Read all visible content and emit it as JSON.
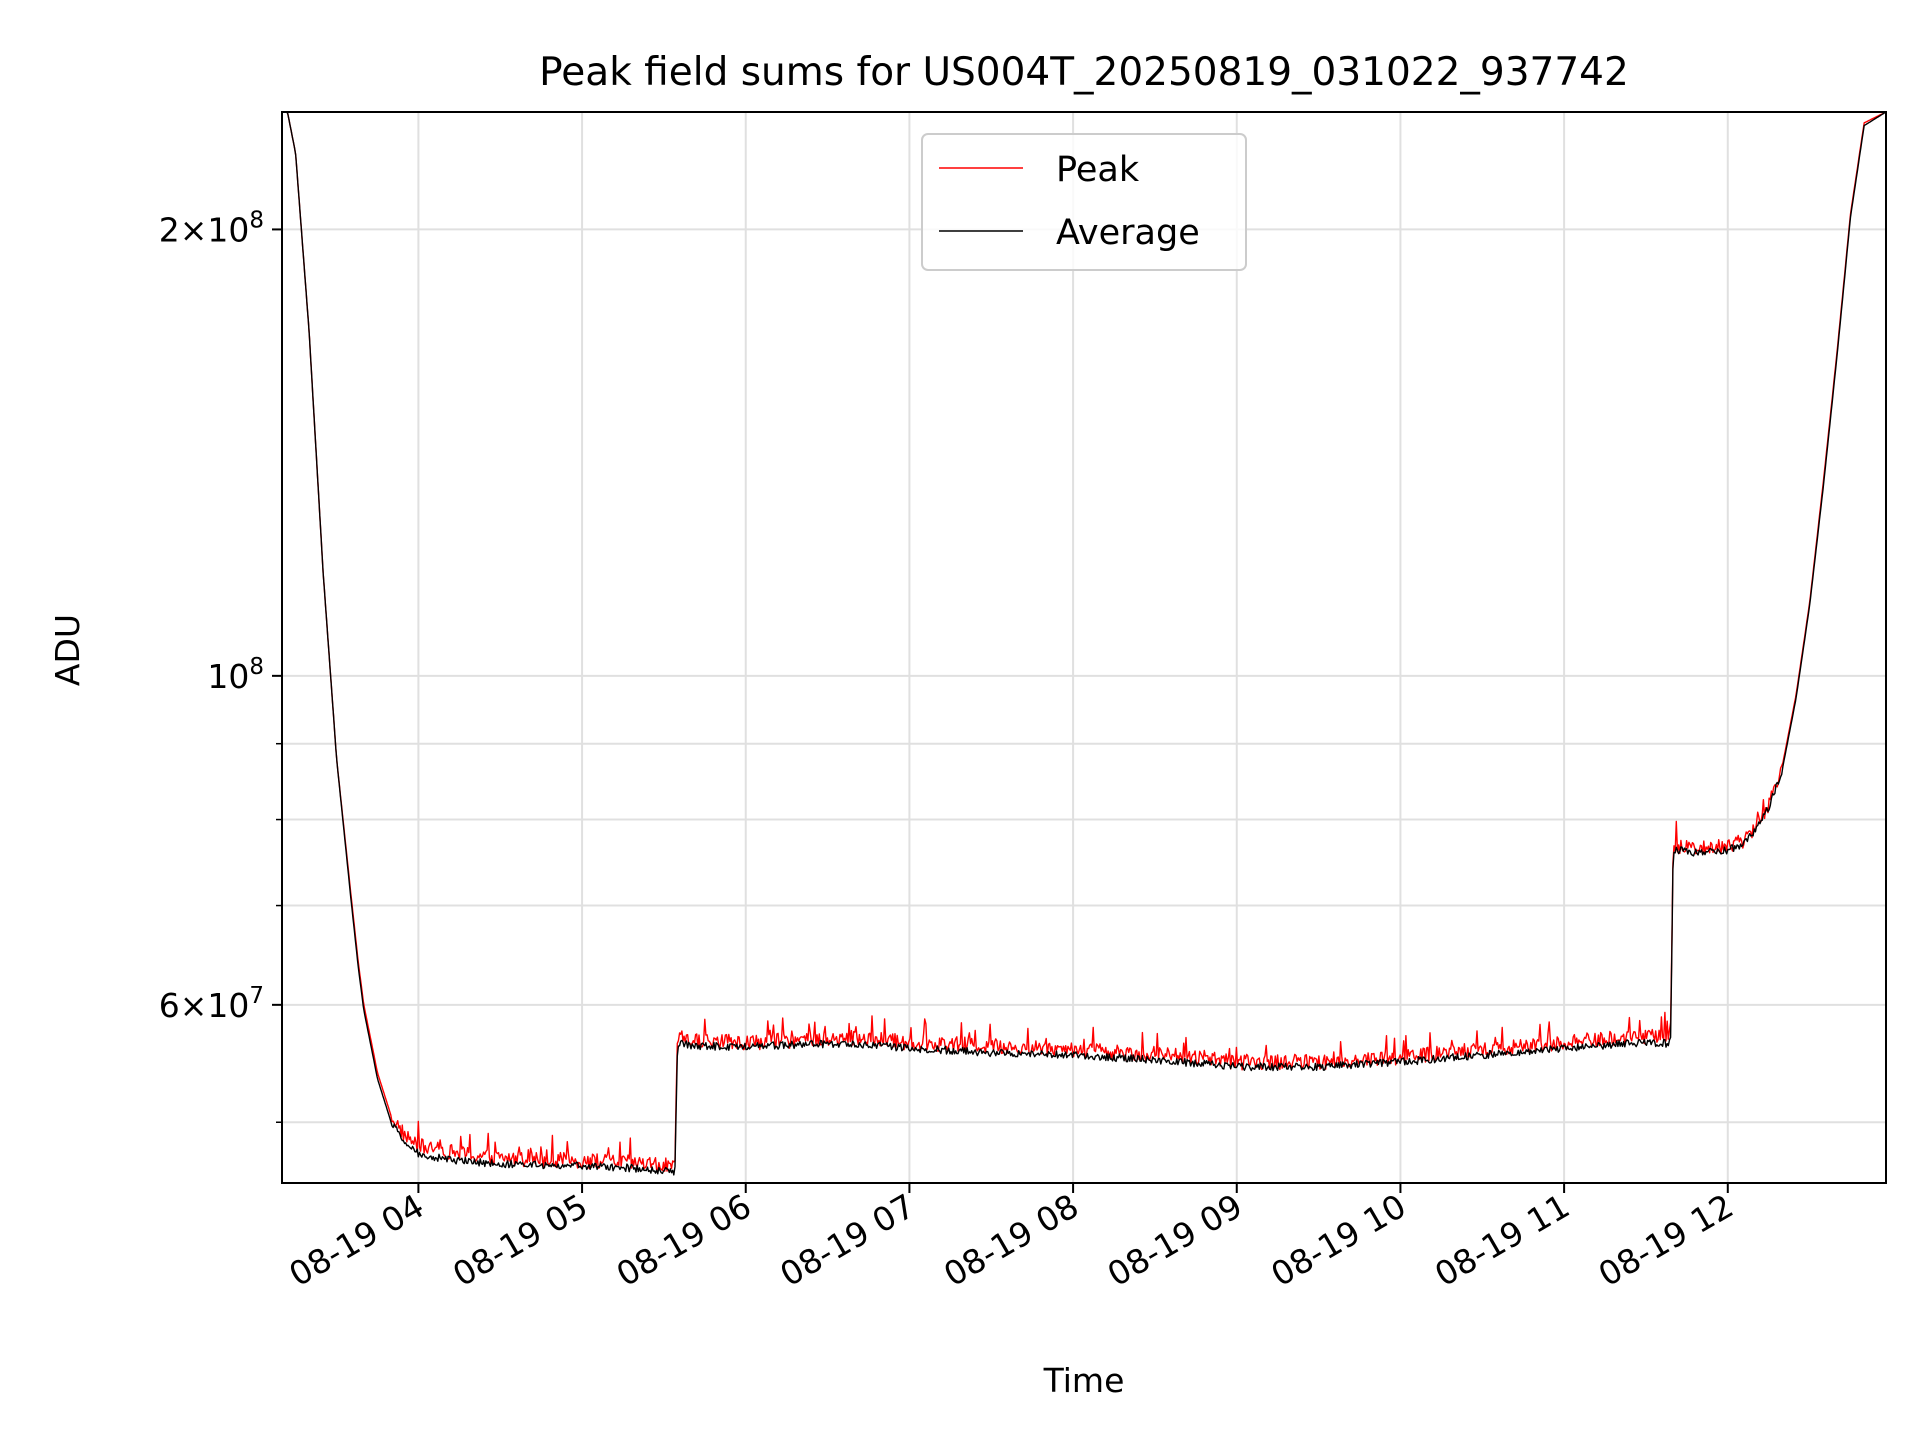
{
  "chart_data": {
    "type": "line",
    "title": "Peak field sums for US004T_20250819_031022_937742",
    "xlabel": "Time",
    "ylabel": "ADU",
    "y_scale": "log",
    "xlim": [
      "2025-08-19 03:10",
      "2025-08-19 12:58"
    ],
    "ylim": [
      45500000,
      240000000
    ],
    "grid": true,
    "legend_position": "top-center",
    "x_tick_labels": [
      "08-19 04",
      "08-19 05",
      "08-19 06",
      "08-19 07",
      "08-19 08",
      "08-19 09",
      "08-19 10",
      "08-19 11",
      "08-19 12"
    ],
    "x_tick_values": [
      "2025-08-19 04:00",
      "2025-08-19 05:00",
      "2025-08-19 06:00",
      "2025-08-19 07:00",
      "2025-08-19 08:00",
      "2025-08-19 09:00",
      "2025-08-19 10:00",
      "2025-08-19 11:00",
      "2025-08-19 12:00"
    ],
    "y_major_ticks": [
      {
        "value": 200000000,
        "base": "2×10",
        "exp": "8"
      },
      {
        "value": 100000000,
        "base": "10",
        "exp": "8"
      },
      {
        "value": 60000000,
        "base": "6×10",
        "exp": "7"
      }
    ],
    "y_minor_ticks": [
      50000000,
      70000000,
      80000000,
      90000000
    ],
    "x": [
      "2025-08-19 03:10",
      "2025-08-19 03:12",
      "2025-08-19 03:15",
      "2025-08-19 03:20",
      "2025-08-19 03:25",
      "2025-08-19 03:30",
      "2025-08-19 03:35",
      "2025-08-19 03:38",
      "2025-08-19 03:40",
      "2025-08-19 03:45",
      "2025-08-19 03:50",
      "2025-08-19 03:55",
      "2025-08-19 04:00",
      "2025-08-19 04:10",
      "2025-08-19 04:20",
      "2025-08-19 04:30",
      "2025-08-19 04:45",
      "2025-08-19 05:00",
      "2025-08-19 05:15",
      "2025-08-19 05:30",
      "2025-08-19 05:34",
      "2025-08-19 05:35",
      "2025-08-19 05:40",
      "2025-08-19 06:00",
      "2025-08-19 06:20",
      "2025-08-19 06:40",
      "2025-08-19 07:00",
      "2025-08-19 07:30",
      "2025-08-19 08:00",
      "2025-08-19 08:30",
      "2025-08-19 08:50",
      "2025-08-19 09:00",
      "2025-08-19 09:30",
      "2025-08-19 10:00",
      "2025-08-19 10:30",
      "2025-08-19 11:00",
      "2025-08-19 11:30",
      "2025-08-19 11:39",
      "2025-08-19 11:40",
      "2025-08-19 11:45",
      "2025-08-19 12:00",
      "2025-08-19 12:05",
      "2025-08-19 12:10",
      "2025-08-19 12:15",
      "2025-08-19 12:20",
      "2025-08-19 12:25",
      "2025-08-19 12:30",
      "2025-08-19 12:35",
      "2025-08-19 12:40",
      "2025-08-19 12:45",
      "2025-08-19 12:50",
      "2025-08-19 12:58"
    ],
    "series": [
      {
        "name": "Peak",
        "color": "#ff0000",
        "noise_fraction": 0.012,
        "values": [
          240000000,
          240000000,
          225000000,
          170000000,
          118000000,
          88000000,
          72000000,
          64000000,
          60000000,
          54000000,
          50500000,
          49000000,
          48200000,
          47800000,
          47500000,
          47300000,
          47200000,
          47100000,
          47000000,
          46800000,
          46600000,
          57000000,
          56800000,
          56600000,
          56800000,
          57000000,
          56600000,
          56300000,
          56000000,
          55600000,
          55200000,
          54900000,
          54900000,
          55300000,
          56000000,
          56600000,
          57200000,
          57100000,
          77000000,
          76500000,
          76800000,
          77300000,
          79000000,
          82000000,
          87000000,
          97000000,
          112000000,
          135000000,
          165000000,
          205000000,
          236000000,
          240000000
        ]
      },
      {
        "name": "Average",
        "color": "#000000",
        "noise_fraction": 0.006,
        "values": [
          240000000,
          240000000,
          225000000,
          170000000,
          118000000,
          88000000,
          71500000,
          63500000,
          59500000,
          53500000,
          50000000,
          48500000,
          47600000,
          47200000,
          47000000,
          46900000,
          46800000,
          46700000,
          46600000,
          46400000,
          46200000,
          56600000,
          56300000,
          56200000,
          56400000,
          56500000,
          56100000,
          55700000,
          55500000,
          55100000,
          54700000,
          54500000,
          54500000,
          54900000,
          55500000,
          56100000,
          56600000,
          56500000,
          76500000,
          76000000,
          76300000,
          76900000,
          78500000,
          81500000,
          86500000,
          96500000,
          111500000,
          134000000,
          164000000,
          204000000,
          235000000,
          240000000
        ]
      }
    ]
  }
}
